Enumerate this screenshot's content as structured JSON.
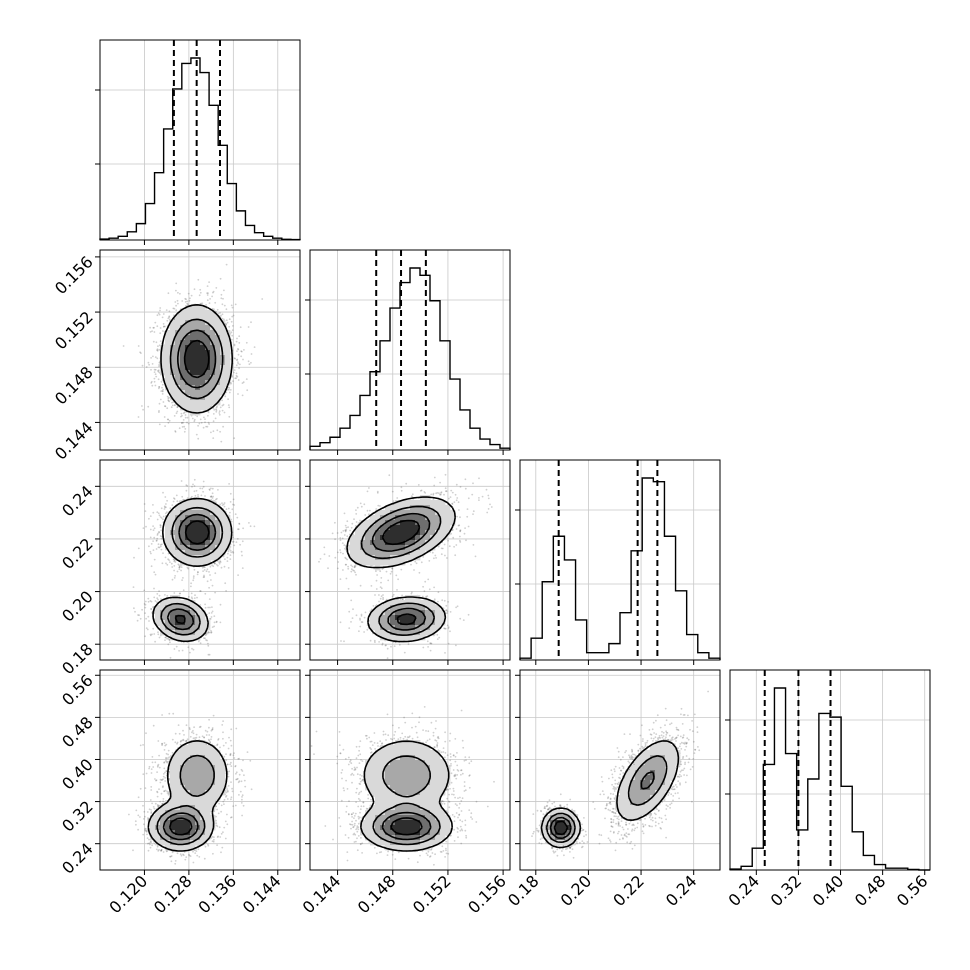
{
  "chart_data": {
    "type": "corner",
    "title": "",
    "grid": true,
    "parameters": [
      {
        "range": [
          0.112,
          0.148
        ],
        "ticks": [
          "0.120",
          "0.128",
          "0.136",
          "0.144"
        ],
        "quantiles": [
          0.1253,
          0.1294,
          0.1336
        ],
        "hist": [
          0.005,
          0.01,
          0.02,
          0.045,
          0.09,
          0.2,
          0.37,
          0.61,
          0.83,
          0.97,
          1.0,
          0.92,
          0.74,
          0.52,
          0.31,
          0.16,
          0.08,
          0.04,
          0.02,
          0.01,
          0.004,
          0.002
        ]
      },
      {
        "range": [
          0.142,
          0.1565
        ],
        "ticks": [
          "0.144",
          "0.148",
          "0.152",
          "0.156"
        ],
        "quantiles": [
          0.1468,
          0.1486,
          0.1504
        ],
        "hist": [
          0.02,
          0.04,
          0.07,
          0.12,
          0.19,
          0.3,
          0.43,
          0.6,
          0.78,
          0.92,
          1.0,
          0.96,
          0.82,
          0.6,
          0.39,
          0.22,
          0.12,
          0.06,
          0.03,
          0.01
        ]
      },
      {
        "range": [
          0.174,
          0.25
        ],
        "ticks": [
          "0.18",
          "0.20",
          "0.22",
          "0.24"
        ],
        "quantiles": [
          0.1887,
          0.2187,
          0.2262
        ],
        "hist": [
          0.01,
          0.12,
          0.43,
          0.68,
          0.55,
          0.22,
          0.04,
          0.04,
          0.09,
          0.26,
          0.6,
          1.0,
          0.98,
          0.68,
          0.38,
          0.14,
          0.04,
          0.01
        ]
      },
      {
        "range": [
          0.19,
          0.57
        ],
        "ticks": [
          "0.24",
          "0.32",
          "0.40",
          "0.48",
          "0.56"
        ],
        "quantiles": [
          0.256,
          0.32,
          0.381
        ],
        "hist": [
          0.005,
          0.02,
          0.12,
          0.58,
          1.0,
          0.64,
          0.22,
          0.5,
          0.86,
          0.84,
          0.46,
          0.21,
          0.08,
          0.03,
          0.01,
          0.01,
          0.003,
          0.0
        ]
      }
    ],
    "pairs": [
      {
        "x": 0,
        "y": 1,
        "modes": [
          {
            "w": 1.0,
            "mx": 0.1294,
            "my": 0.1486,
            "sx": 0.0031,
            "sy": 0.0019,
            "rho": 0.0
          }
        ]
      },
      {
        "x": 0,
        "y": 2,
        "modes": [
          {
            "w": 0.68,
            "mx": 0.1295,
            "my": 0.2225,
            "sx": 0.003,
            "sy": 0.0062,
            "rho": 0.0
          },
          {
            "w": 0.32,
            "mx": 0.1265,
            "my": 0.1895,
            "sx": 0.0025,
            "sy": 0.0042,
            "rho": -0.2
          }
        ]
      },
      {
        "x": 1,
        "y": 2,
        "modes": [
          {
            "w": 0.68,
            "mx": 0.1486,
            "my": 0.2225,
            "sx": 0.0019,
            "sy": 0.0065,
            "rho": 0.45
          },
          {
            "w": 0.32,
            "mx": 0.149,
            "my": 0.1895,
            "sx": 0.0014,
            "sy": 0.0042,
            "rho": 0.1
          }
        ]
      },
      {
        "x": 0,
        "y": 3,
        "modes": [
          {
            "w": 0.5,
            "mx": 0.1265,
            "my": 0.272,
            "sx": 0.0028,
            "sy": 0.022,
            "rho": 0.0
          },
          {
            "w": 0.5,
            "mx": 0.1295,
            "my": 0.37,
            "sx": 0.0031,
            "sy": 0.038,
            "rho": 0.0
          }
        ]
      },
      {
        "x": 1,
        "y": 3,
        "modes": [
          {
            "w": 0.5,
            "mx": 0.149,
            "my": 0.272,
            "sx": 0.0016,
            "sy": 0.022,
            "rho": 0.0
          },
          {
            "w": 0.5,
            "mx": 0.149,
            "my": 0.37,
            "sx": 0.0018,
            "sy": 0.038,
            "rho": 0.0
          }
        ]
      },
      {
        "x": 2,
        "y": 3,
        "modes": [
          {
            "w": 0.32,
            "mx": 0.1895,
            "my": 0.27,
            "sx": 0.0035,
            "sy": 0.018,
            "rho": 0.0
          },
          {
            "w": 0.68,
            "mx": 0.2225,
            "my": 0.36,
            "sx": 0.0065,
            "sy": 0.042,
            "rho": 0.55
          }
        ]
      }
    ]
  }
}
